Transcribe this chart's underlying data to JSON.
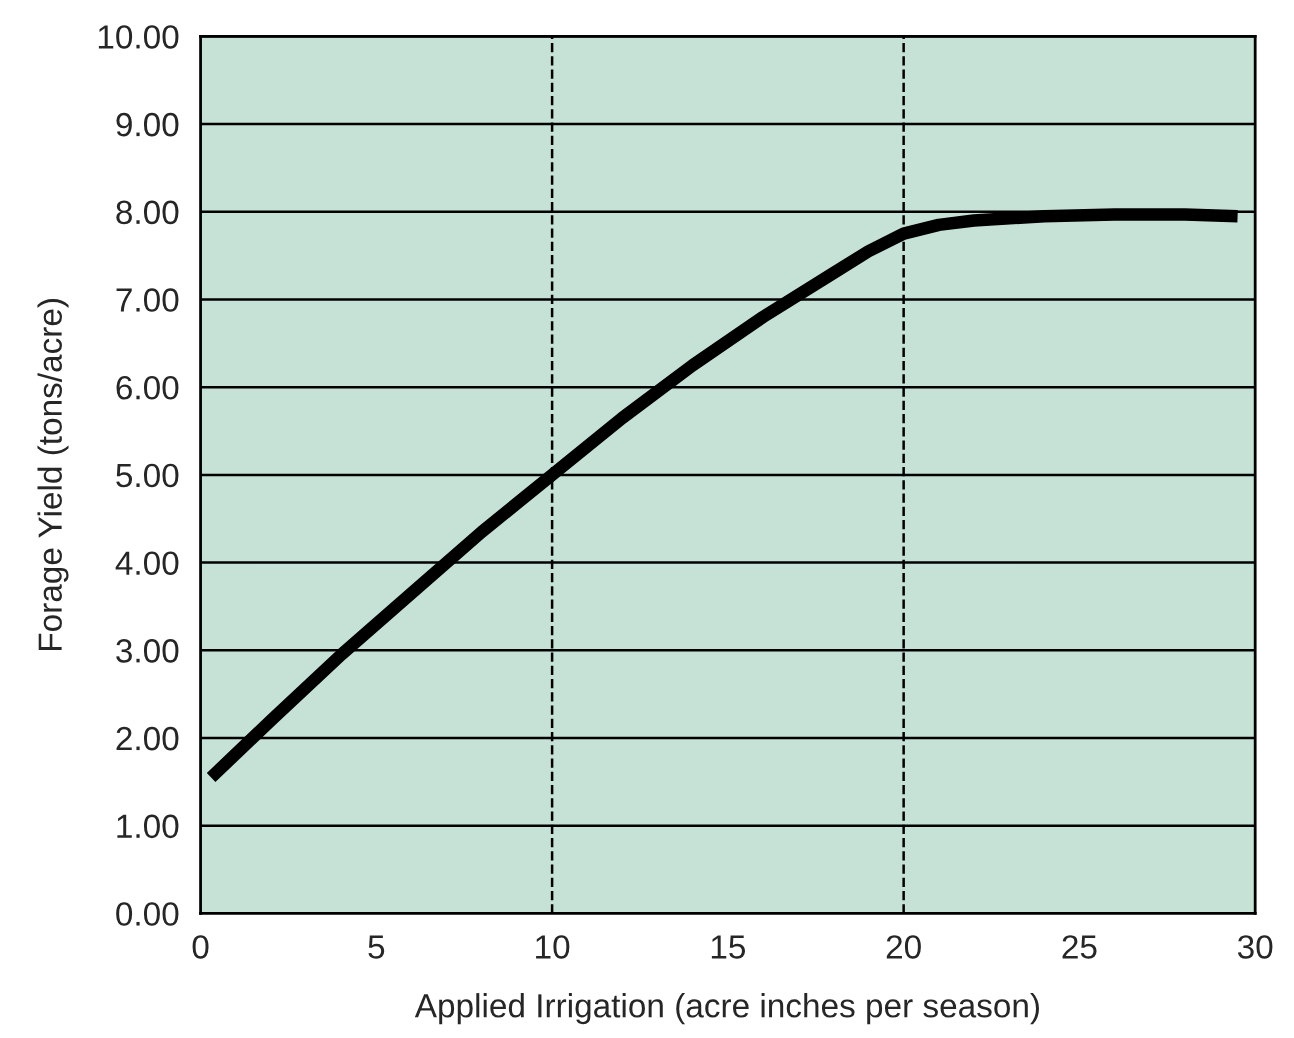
{
  "chart_data": {
    "type": "line",
    "xlabel": "Applied Irrigation (acre inches per season)",
    "ylabel": "Forage Yield (tons/acre)",
    "series": [
      {
        "color": "#000000",
        "x": [
          0.3,
          2,
          4,
          6,
          8,
          10,
          12,
          14,
          16,
          18,
          19,
          20,
          21,
          22,
          24,
          26,
          28,
          29.5
        ],
        "values": [
          1.55,
          2.2,
          2.95,
          3.65,
          4.35,
          5.0,
          5.65,
          6.25,
          6.8,
          7.3,
          7.55,
          7.75,
          7.85,
          7.9,
          7.95,
          7.97,
          7.97,
          7.95
        ]
      }
    ],
    "xlim": [
      0,
      30
    ],
    "xticks": [
      0,
      5,
      10,
      15,
      20,
      25,
      30
    ],
    "ylim": [
      0,
      10
    ],
    "yticks": [
      {
        "value": 0,
        "label": "0.00"
      },
      {
        "value": 1,
        "label": "1.00"
      },
      {
        "value": 2,
        "label": "2.00"
      },
      {
        "value": 3,
        "label": "3.00"
      },
      {
        "value": 4,
        "label": "4.00"
      },
      {
        "value": 5,
        "label": "5.00"
      },
      {
        "value": 6,
        "label": "6.00"
      },
      {
        "value": 7,
        "label": "7.00"
      },
      {
        "value": 8,
        "label": "8.00"
      },
      {
        "value": 9,
        "label": "9.00"
      },
      {
        "value": 10,
        "label": "10.00"
      }
    ],
    "ref_lines": [
      {
        "axis": "x",
        "value": 10,
        "color": "#000000",
        "line_style": "dashed"
      },
      {
        "axis": "x",
        "value": 20,
        "color": "#000000",
        "line_style": "dashed"
      }
    ],
    "grid": "y",
    "marker": "none",
    "line_style": "solid"
  }
}
